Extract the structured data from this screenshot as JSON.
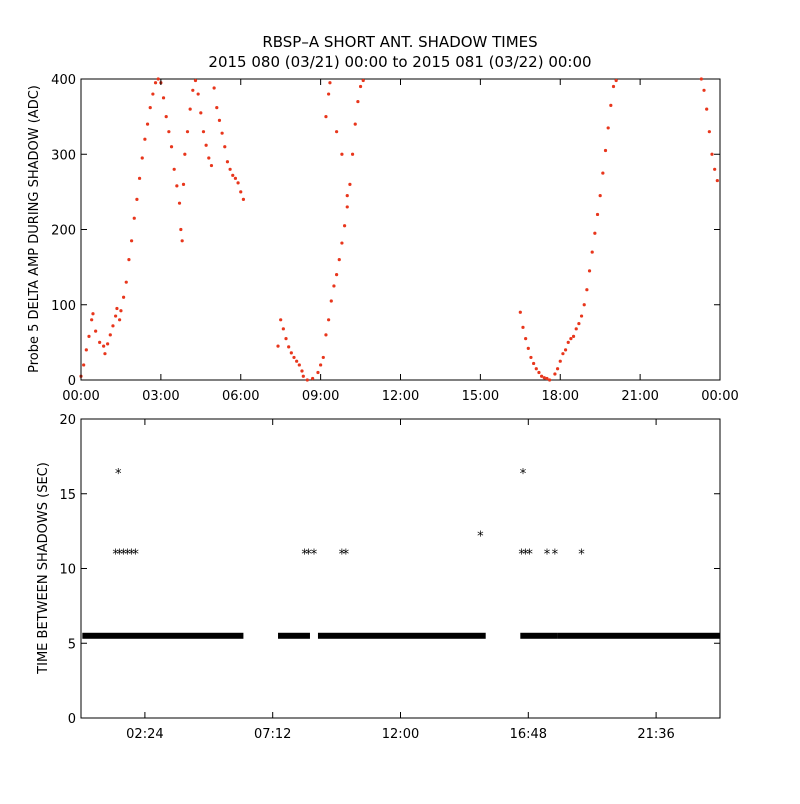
{
  "title_line1": "RBSP–A SHORT ANT. SHADOW TIMES",
  "title_line2": "2015 080 (03/21) 00:00 to 2015 081 (03/22) 00:00",
  "colors": {
    "scatter_top": "#e8361c",
    "scatter_bottom": "#000000",
    "axes": "#000000"
  },
  "chart_data": [
    {
      "type": "scatter",
      "ylabel": "Probe 5 DELTA AMP DURING SHADOW (ADC)",
      "xlim": [
        0,
        24
      ],
      "ylim": [
        0,
        400
      ],
      "xticks": [
        {
          "v": 0,
          "label": "00:00"
        },
        {
          "v": 3,
          "label": "03:00"
        },
        {
          "v": 6,
          "label": "06:00"
        },
        {
          "v": 9,
          "label": "09:00"
        },
        {
          "v": 12,
          "label": "12:00"
        },
        {
          "v": 15,
          "label": "15:00"
        },
        {
          "v": 18,
          "label": "18:00"
        },
        {
          "v": 21,
          "label": "21:00"
        },
        {
          "v": 24,
          "label": "00:00"
        }
      ],
      "yticks": [
        {
          "v": 0,
          "label": "0"
        },
        {
          "v": 100,
          "label": "100"
        },
        {
          "v": 200,
          "label": "200"
        },
        {
          "v": 300,
          "label": "300"
        },
        {
          "v": 400,
          "label": "400"
        }
      ],
      "series": [
        {
          "points": [
            [
              0.0,
              5
            ],
            [
              0.1,
              20
            ],
            [
              0.2,
              40
            ],
            [
              0.3,
              58
            ],
            [
              0.4,
              80
            ],
            [
              0.45,
              88
            ],
            [
              0.55,
              65
            ],
            [
              0.7,
              50
            ],
            [
              0.85,
              45
            ],
            [
              0.9,
              35
            ],
            [
              1.0,
              48
            ],
            [
              1.1,
              60
            ],
            [
              1.2,
              72
            ],
            [
              1.3,
              85
            ],
            [
              1.35,
              95
            ],
            [
              1.45,
              80
            ],
            [
              1.5,
              92
            ],
            [
              1.6,
              110
            ],
            [
              1.7,
              130
            ],
            [
              1.8,
              160
            ],
            [
              1.9,
              185
            ],
            [
              2.0,
              215
            ],
            [
              2.1,
              240
            ],
            [
              2.2,
              268
            ],
            [
              2.3,
              295
            ],
            [
              2.4,
              320
            ],
            [
              2.5,
              340
            ],
            [
              2.6,
              362
            ],
            [
              2.7,
              380
            ],
            [
              2.8,
              395
            ],
            [
              2.9,
              400
            ],
            [
              3.0,
              395
            ],
            [
              3.1,
              375
            ],
            [
              3.2,
              350
            ],
            [
              3.3,
              330
            ],
            [
              3.4,
              310
            ],
            [
              3.5,
              280
            ],
            [
              3.6,
              258
            ],
            [
              3.7,
              235
            ],
            [
              3.75,
              200
            ],
            [
              3.8,
              185
            ],
            [
              3.85,
              260
            ],
            [
              3.9,
              300
            ],
            [
              4.0,
              330
            ],
            [
              4.1,
              360
            ],
            [
              4.2,
              385
            ],
            [
              4.3,
              398
            ],
            [
              4.4,
              380
            ],
            [
              4.5,
              355
            ],
            [
              4.6,
              330
            ],
            [
              4.7,
              312
            ],
            [
              4.8,
              295
            ],
            [
              4.9,
              285
            ],
            [
              5.0,
              388
            ],
            [
              5.1,
              362
            ],
            [
              5.2,
              345
            ],
            [
              5.3,
              328
            ],
            [
              5.4,
              310
            ],
            [
              5.5,
              290
            ],
            [
              5.6,
              280
            ],
            [
              5.7,
              272
            ],
            [
              5.8,
              268
            ],
            [
              5.9,
              262
            ],
            [
              6.0,
              250
            ],
            [
              6.1,
              240
            ],
            [
              7.4,
              45
            ],
            [
              7.5,
              80
            ],
            [
              7.6,
              68
            ],
            [
              7.7,
              55
            ],
            [
              7.8,
              44
            ],
            [
              7.9,
              36
            ],
            [
              8.0,
              30
            ],
            [
              8.1,
              25
            ],
            [
              8.2,
              20
            ],
            [
              8.3,
              12
            ],
            [
              8.35,
              5
            ],
            [
              8.5,
              0
            ],
            [
              8.7,
              2
            ],
            [
              8.9,
              10
            ],
            [
              9.0,
              20
            ],
            [
              9.1,
              30
            ],
            [
              9.2,
              60
            ],
            [
              9.3,
              80
            ],
            [
              9.4,
              105
            ],
            [
              9.5,
              125
            ],
            [
              9.6,
              140
            ],
            [
              9.7,
              160
            ],
            [
              9.8,
              182
            ],
            [
              9.9,
              205
            ],
            [
              10.0,
              230
            ],
            [
              10.1,
              260
            ],
            [
              10.2,
              300
            ],
            [
              10.3,
              340
            ],
            [
              10.4,
              370
            ],
            [
              10.5,
              390
            ],
            [
              10.6,
              398
            ],
            [
              9.2,
              350
            ],
            [
              9.3,
              380
            ],
            [
              9.35,
              395
            ],
            [
              9.6,
              330
            ],
            [
              9.8,
              300
            ],
            [
              10.0,
              245
            ],
            [
              16.5,
              90
            ],
            [
              16.6,
              70
            ],
            [
              16.7,
              55
            ],
            [
              16.8,
              42
            ],
            [
              16.9,
              30
            ],
            [
              17.0,
              22
            ],
            [
              17.1,
              15
            ],
            [
              17.2,
              10
            ],
            [
              17.3,
              5
            ],
            [
              17.4,
              3
            ],
            [
              17.5,
              2
            ],
            [
              17.6,
              0
            ],
            [
              17.8,
              8
            ],
            [
              17.9,
              15
            ],
            [
              18.0,
              25
            ],
            [
              18.1,
              35
            ],
            [
              18.2,
              40
            ],
            [
              18.3,
              50
            ],
            [
              18.4,
              55
            ],
            [
              18.5,
              58
            ],
            [
              18.6,
              68
            ],
            [
              18.7,
              75
            ],
            [
              18.8,
              85
            ],
            [
              18.9,
              100
            ],
            [
              19.0,
              120
            ],
            [
              19.1,
              145
            ],
            [
              19.2,
              170
            ],
            [
              19.3,
              195
            ],
            [
              19.4,
              220
            ],
            [
              19.5,
              245
            ],
            [
              19.6,
              275
            ],
            [
              19.7,
              305
            ],
            [
              19.8,
              335
            ],
            [
              19.9,
              365
            ],
            [
              20.0,
              390
            ],
            [
              20.1,
              398
            ],
            [
              23.3,
              400
            ],
            [
              23.4,
              385
            ],
            [
              23.5,
              360
            ],
            [
              23.6,
              330
            ],
            [
              23.7,
              300
            ],
            [
              23.8,
              280
            ],
            [
              23.9,
              265
            ]
          ]
        }
      ]
    },
    {
      "type": "scatter",
      "ylabel": "TIME BETWEEN SHADOWS (SEC)",
      "xlim": [
        0,
        24
      ],
      "ylim": [
        0,
        20
      ],
      "xticks": [
        {
          "v": 2.4,
          "label": "02:24"
        },
        {
          "v": 7.2,
          "label": "07:12"
        },
        {
          "v": 12.0,
          "label": "12:00"
        },
        {
          "v": 16.8,
          "label": "16:48"
        },
        {
          "v": 21.6,
          "label": "21:36"
        }
      ],
      "yticks": [
        {
          "v": 0,
          "label": "0"
        },
        {
          "v": 5,
          "label": "5"
        },
        {
          "v": 10,
          "label": "10"
        },
        {
          "v": 15,
          "label": "15"
        },
        {
          "v": 20,
          "label": "20"
        }
      ],
      "baseline_segments": [
        {
          "x0": 0.05,
          "x1": 6.1,
          "y": 5.5
        },
        {
          "x0": 7.4,
          "x1": 8.6,
          "y": 5.5
        },
        {
          "x0": 8.9,
          "x1": 15.2,
          "y": 5.5
        },
        {
          "x0": 16.5,
          "x1": 17.9,
          "y": 5.5
        },
        {
          "x0": 17.9,
          "x1": 24.0,
          "y": 5.5
        }
      ],
      "series": [
        {
          "points": [
            [
              1.4,
              16.4
            ],
            [
              1.3,
              11.0
            ],
            [
              1.45,
              11.0
            ],
            [
              1.6,
              11.0
            ],
            [
              1.75,
              11.0
            ],
            [
              1.9,
              11.0
            ],
            [
              2.05,
              11.0
            ],
            [
              8.4,
              11.0
            ],
            [
              8.55,
              11.0
            ],
            [
              8.75,
              11.0
            ],
            [
              9.8,
              11.0
            ],
            [
              9.95,
              11.0
            ],
            [
              15.0,
              12.2
            ],
            [
              16.6,
              16.4
            ],
            [
              16.55,
              11.0
            ],
            [
              16.7,
              11.0
            ],
            [
              16.85,
              11.0
            ],
            [
              17.5,
              11.0
            ],
            [
              17.8,
              11.0
            ],
            [
              18.8,
              11.0
            ]
          ]
        }
      ]
    }
  ]
}
